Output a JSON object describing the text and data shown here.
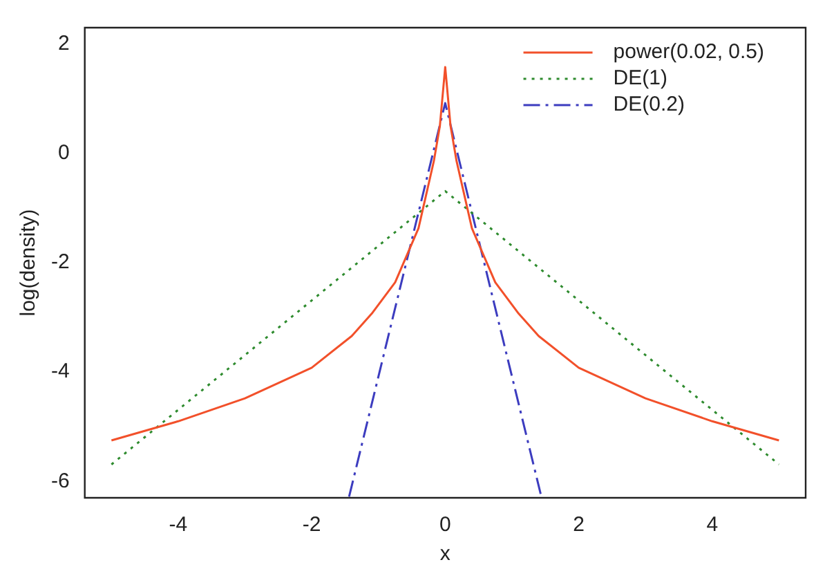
{
  "chart_data": {
    "type": "line",
    "xlabel": "x",
    "ylabel": "log(density)",
    "xlim": [
      -5.4,
      5.4
    ],
    "xticks": [
      -4,
      -2,
      0,
      2,
      4
    ],
    "ylim": [
      -6.3,
      2.3
    ],
    "yticks": [
      -6,
      -4,
      -2,
      0,
      2
    ],
    "grid": false,
    "legend": "top right",
    "marker": "none",
    "series": [
      {
        "name": "power(0.02, 0.5)",
        "color": "#f2502a",
        "line_style": "solid",
        "x": [
          -5,
          -4,
          -3,
          -2,
          -1.4,
          -1.1,
          -0.75,
          -0.4,
          -0.17,
          -0.08,
          0,
          0.08,
          0.17,
          0.4,
          0.75,
          1.1,
          1.4,
          2,
          3,
          4,
          5
        ],
        "values": [
          -5.25,
          -4.9,
          -4.48,
          -3.92,
          -3.34,
          -2.93,
          -2.36,
          -1.37,
          -0.14,
          0.5,
          1.58,
          0.5,
          -0.14,
          -1.37,
          -2.36,
          -2.93,
          -3.34,
          -3.92,
          -4.48,
          -4.9,
          -5.25
        ]
      },
      {
        "name": "DE(1)",
        "color": "#2e8b2e",
        "line_style": "dotted",
        "x": [
          -5,
          0,
          5
        ],
        "values": [
          -5.69,
          -0.69,
          -5.69
        ]
      },
      {
        "name": "DE(0.2)",
        "color": "#3c3cbf",
        "line_style": "dashed",
        "x": [
          -1.44,
          0,
          1.44
        ],
        "values": [
          -6.28,
          0.92,
          -6.28
        ]
      }
    ]
  }
}
